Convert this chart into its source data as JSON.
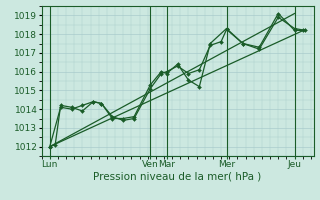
{
  "xlabel": "Pression niveau de la mer( hPa )",
  "ylim": [
    1011.5,
    1019.5
  ],
  "yticks": [
    1012,
    1013,
    1014,
    1015,
    1016,
    1017,
    1018,
    1019
  ],
  "xlim": [
    0,
    100
  ],
  "xtick_positions": [
    3,
    40,
    46,
    68,
    93
  ],
  "xtick_labels": [
    "Lun",
    "Ven",
    "Mar",
    "Mer",
    "Jeu"
  ],
  "bg_color": "#cce8e0",
  "grid_color": "#aacccc",
  "line_color": "#1a5c28",
  "series1_x": [
    3,
    5,
    7,
    11,
    15,
    19,
    22,
    26,
    30,
    34,
    40,
    44,
    46,
    50,
    54,
    58,
    62,
    66,
    68,
    74,
    80,
    87,
    93,
    96
  ],
  "series1_y": [
    1012.0,
    1012.1,
    1014.2,
    1014.1,
    1013.9,
    1014.4,
    1014.3,
    1013.6,
    1013.4,
    1013.5,
    1015.1,
    1015.9,
    1016.0,
    1016.3,
    1015.9,
    1016.1,
    1017.4,
    1017.6,
    1018.25,
    1017.5,
    1017.3,
    1019.1,
    1018.2,
    1018.2
  ],
  "series2_x": [
    3,
    7,
    11,
    15,
    19,
    22,
    26,
    30,
    34,
    40,
    44,
    46,
    50,
    54,
    58,
    62,
    68,
    74,
    80,
    87,
    93,
    97
  ],
  "series2_y": [
    1012.0,
    1014.1,
    1014.0,
    1014.2,
    1014.4,
    1014.3,
    1013.5,
    1013.5,
    1013.6,
    1015.3,
    1016.0,
    1015.9,
    1016.4,
    1015.55,
    1015.2,
    1017.5,
    1018.3,
    1017.5,
    1017.2,
    1018.9,
    1018.3,
    1018.2
  ],
  "trend1_x": [
    3,
    97
  ],
  "trend1_y": [
    1012.0,
    1018.25
  ],
  "trend2_x": [
    3,
    93
  ],
  "trend2_y": [
    1012.0,
    1019.1
  ],
  "vlines": [
    3,
    40,
    46,
    68,
    93
  ]
}
